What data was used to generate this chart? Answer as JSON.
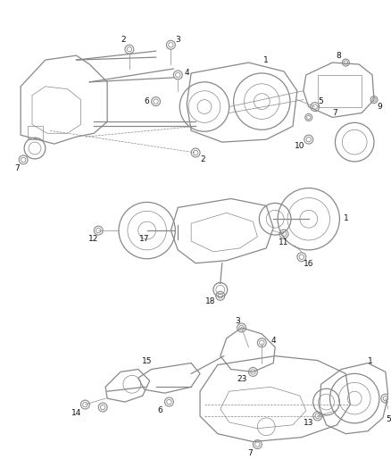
{
  "bg_color": "#ffffff",
  "line_color": "#888888",
  "text_color": "#111111",
  "fig_width": 4.38,
  "fig_height": 5.33,
  "dpi": 100,
  "lw_main": 0.9,
  "lw_thin": 0.5,
  "lw_bold": 1.1
}
